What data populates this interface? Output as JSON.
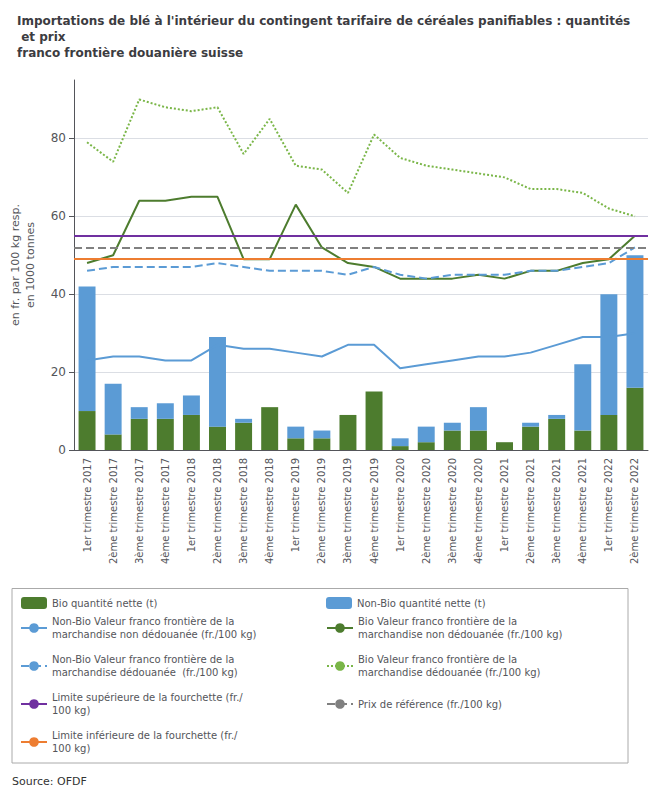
{
  "chart_data": {
    "type": "bar",
    "title": "Importations de blé à l'intérieur du contingent tarifaire de céréales panifiables : quantités et prix\nfranco frontière douanière suisse",
    "ylabel": "en fr. par 100 kg resp.\nen 1000 tonnes",
    "categories": [
      "1er trimestre 2017",
      "2ème trimestre 2017",
      "3ème trimestre 2017",
      "4ème trimestre 2017",
      "1er trimestre 2018",
      "2ème trimestre 2018",
      "3ème trimestre 2018",
      "4ème trimestre 2018",
      "1er trimestre 2019",
      "2ème trimestre 2019",
      "3ème trimestre 2019",
      "4ème trimestre 2019",
      "1er trimestre 2020",
      "2ème trimestre 2020",
      "3ème trimestre 2020",
      "4ème trimestre 2020",
      "1er trimestre 2021",
      "2ème trimestre 2021",
      "3ème trimestre 2021",
      "4ème trimestre 2021",
      "1er trimestre 2022",
      "2ème trimestre 2022"
    ],
    "stacked": true,
    "grid": true,
    "legend": "bottom",
    "ylim": [
      0,
      95
    ],
    "yticks": [
      0,
      20,
      40,
      60,
      80
    ],
    "annotations": [
      "Source: OFDF"
    ],
    "series": [
      {
        "name": "Bio quantité nette (t)",
        "type": "bar",
        "color": "#4d7c2e",
        "values": [
          10,
          4,
          8,
          8,
          9,
          6,
          7,
          11,
          3,
          3,
          9,
          15,
          1,
          2,
          5,
          5,
          2,
          6,
          8,
          5,
          9,
          16
        ]
      },
      {
        "name": "Non-Bio quantité nette (t)",
        "type": "bar",
        "color": "#5b9bd5",
        "values": [
          32,
          13,
          3,
          4,
          5,
          23,
          1,
          0,
          3,
          2,
          0,
          0,
          2,
          4,
          2,
          6,
          0,
          1,
          1,
          17,
          31,
          34
        ]
      },
      {
        "name": "Non-Bio Valeur franco frontière de la\nmarchandise non dédouanée (fr./100 kg)",
        "type": "line",
        "color": "#5b9bd5",
        "line_style": "solid",
        "values": [
          23,
          24,
          24,
          23,
          23,
          27,
          26,
          26,
          25,
          24,
          27,
          27,
          21,
          22,
          23,
          24,
          24,
          25,
          27,
          29,
          29,
          30
        ]
      },
      {
        "name": "Bio Valeur franco frontière de la\nmarchandise non dédouanée (fr./100 kg)",
        "type": "line",
        "color": "#4d7c2e",
        "line_style": "solid",
        "values": [
          48,
          50,
          64,
          64,
          65,
          65,
          49,
          49,
          63,
          52,
          48,
          47,
          44,
          44,
          44,
          45,
          44,
          46,
          46,
          48,
          49,
          55
        ]
      },
      {
        "name": "Non-Bio Valeur franco frontière de la\nmarchandise dédouanée  (fr./100 kg)",
        "type": "line",
        "color": "#5b9bd5",
        "line_style": "dashed",
        "values": [
          46,
          47,
          47,
          47,
          47,
          48,
          47,
          46,
          46,
          46,
          45,
          47,
          45,
          44,
          45,
          45,
          45,
          46,
          46,
          47,
          48,
          52
        ]
      },
      {
        "name": "Bio Valeur franco frontière de la\nmarchandise dédouanée (fr./100 kg)",
        "type": "line",
        "color": "#7ab648",
        "line_style": "dotted",
        "values": [
          79,
          74,
          90,
          88,
          87,
          88,
          76,
          85,
          73,
          72,
          66,
          81,
          75,
          73,
          72,
          71,
          70,
          67,
          67,
          66,
          62,
          60
        ]
      },
      {
        "name": "Limite supérieure de la fourchette (fr./100 kg)",
        "type": "hline",
        "color": "#7030a0",
        "line_style": "solid",
        "value": 55
      },
      {
        "name": "Prix de référence (fr./100 kg)",
        "type": "hline",
        "color": "#808080",
        "line_style": "dashed",
        "value": 52
      },
      {
        "name": "Limite inférieure de la fourchette (fr./100 kg)",
        "type": "hline",
        "color": "#ed7d31",
        "line_style": "solid",
        "value": 49
      }
    ]
  }
}
